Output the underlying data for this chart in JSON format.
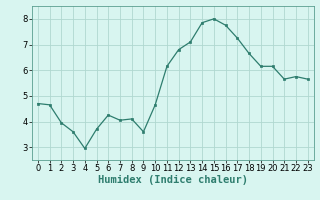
{
  "x": [
    0,
    1,
    2,
    3,
    4,
    5,
    6,
    7,
    8,
    9,
    10,
    11,
    12,
    13,
    14,
    15,
    16,
    17,
    18,
    19,
    20,
    21,
    22,
    23
  ],
  "y": [
    4.7,
    4.65,
    3.95,
    3.6,
    2.95,
    3.7,
    4.25,
    4.05,
    4.1,
    3.6,
    4.65,
    6.15,
    6.8,
    7.1,
    7.85,
    8.0,
    7.75,
    7.25,
    6.65,
    6.15,
    6.15,
    5.65,
    5.75,
    5.65
  ],
  "line_color": "#2e7d6e",
  "marker": "s",
  "marker_size": 2,
  "bg_color": "#d8f5f0",
  "grid_color": "#b0d8d0",
  "xlabel": "Humidex (Indice chaleur)",
  "ylim": [
    2.5,
    8.5
  ],
  "xlim": [
    -0.5,
    23.5
  ],
  "yticks": [
    3,
    4,
    5,
    6,
    7,
    8
  ],
  "xticks": [
    0,
    1,
    2,
    3,
    4,
    5,
    6,
    7,
    8,
    9,
    10,
    11,
    12,
    13,
    14,
    15,
    16,
    17,
    18,
    19,
    20,
    21,
    22,
    23
  ],
  "tick_label_size": 6,
  "xlabel_size": 7.5,
  "linewidth": 0.9,
  "spine_color": "#5a9e90"
}
